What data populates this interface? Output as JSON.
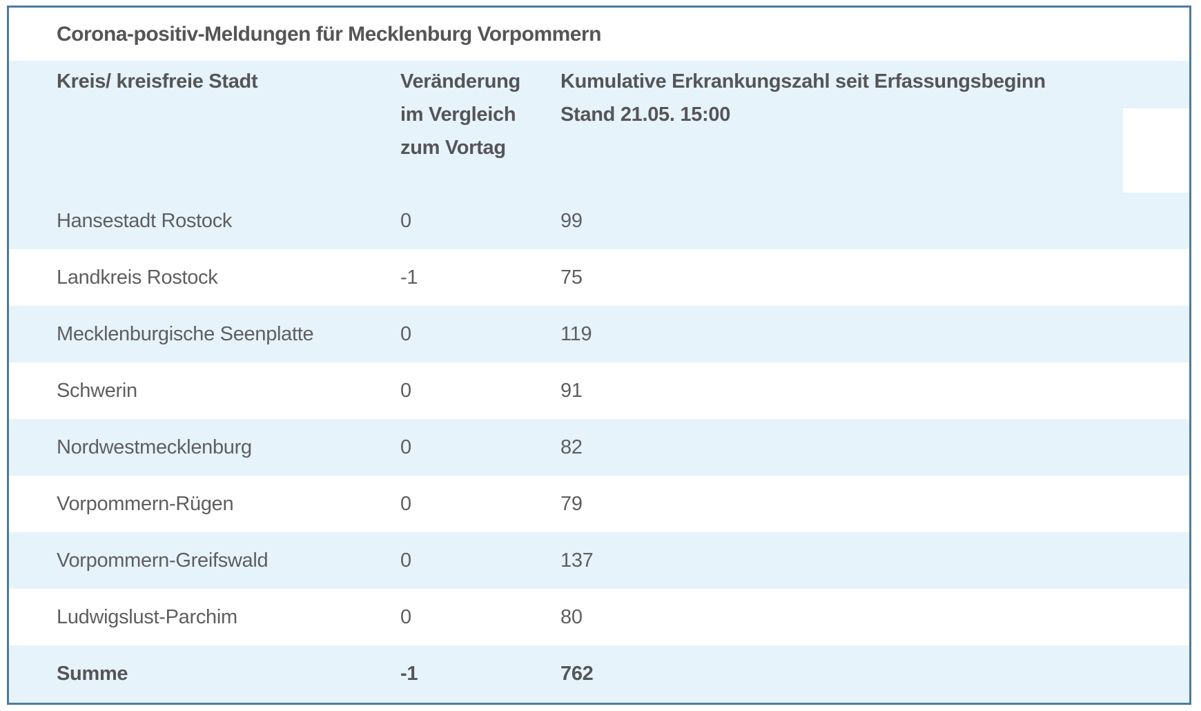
{
  "chart_data": {
    "type": "table",
    "title": "Corona-positiv-Meldungen für Mecklenburg Vorpommern",
    "columns": [
      "Kreis/ kreisfreie Stadt",
      "Veränderung im Vergleich zum Vortag",
      "Kumulative Erkrankungszahl seit Erfassungsbeginn Stand 21.05. 15:00"
    ],
    "rows": [
      [
        "Hansestadt Rostock",
        0,
        99
      ],
      [
        "Landkreis Rostock",
        -1,
        75
      ],
      [
        "Mecklenburgische Seenplatte",
        0,
        119
      ],
      [
        "Schwerin",
        0,
        91
      ],
      [
        "Nordwestmecklenburg",
        0,
        82
      ],
      [
        "Vorpommern-Rügen",
        0,
        79
      ],
      [
        "Vorpommern-Greifswald",
        0,
        137
      ],
      [
        "Ludwigslust-Parchim",
        0,
        80
      ]
    ],
    "summary_row": [
      "Summe",
      -1,
      762
    ],
    "layout": {
      "striped_rows": "alternating light blue / white, header and first data row blue",
      "grid": "off"
    }
  },
  "display": {
    "header_col3_line1": "Kumulative Erkrankungszahl seit Erfassungsbeginn",
    "header_col3_line2": "Stand 21.05. 15:00"
  },
  "colors": {
    "stripe_blue": "#e6f3fb",
    "border_blue": "#4d7b9d",
    "text_gray": "#5e5e61",
    "text_bold_gray": "#555558",
    "background": "#ffffff"
  }
}
